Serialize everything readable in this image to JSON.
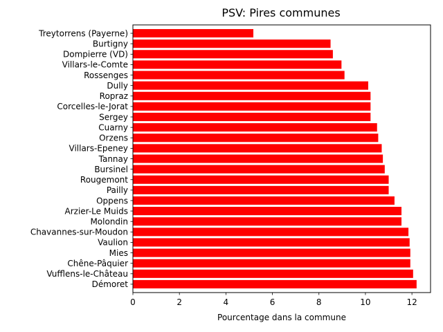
{
  "chart_data": {
    "type": "bar",
    "orientation": "horizontal",
    "title": "PSV: Pires communes",
    "xlabel": "Pourcentage dans la commune",
    "ylabel": "",
    "xlim": [
      0,
      12.8
    ],
    "xticks": [
      0,
      2,
      4,
      6,
      8,
      10,
      12
    ],
    "bar_color": "#ff0000",
    "categories": [
      "Démoret",
      "Vufflens-le-Château",
      "Chêne-Pâquier",
      "Mies",
      "Vaulion",
      "Chavannes-sur-Moudon",
      "Molondin",
      "Arzier-Le Muids",
      "Oppens",
      "Pailly",
      "Rougemont",
      "Bursinel",
      "Tannay",
      "Villars-Epeney",
      "Orzens",
      "Cuarny",
      "Sergey",
      "Corcelles-le-Jorat",
      "Ropraz",
      "Dully",
      "Rossenges",
      "Villars-le-Comte",
      "Dompierre (VD)",
      "Burtigny",
      "Treytorrens (Payerne)"
    ],
    "values": [
      12.2,
      12.05,
      11.93,
      11.93,
      11.9,
      11.85,
      11.55,
      11.55,
      11.25,
      11.0,
      11.0,
      10.83,
      10.75,
      10.7,
      10.55,
      10.5,
      10.22,
      10.22,
      10.22,
      10.12,
      9.1,
      8.97,
      8.6,
      8.5,
      5.18
    ],
    "grid": false
  }
}
